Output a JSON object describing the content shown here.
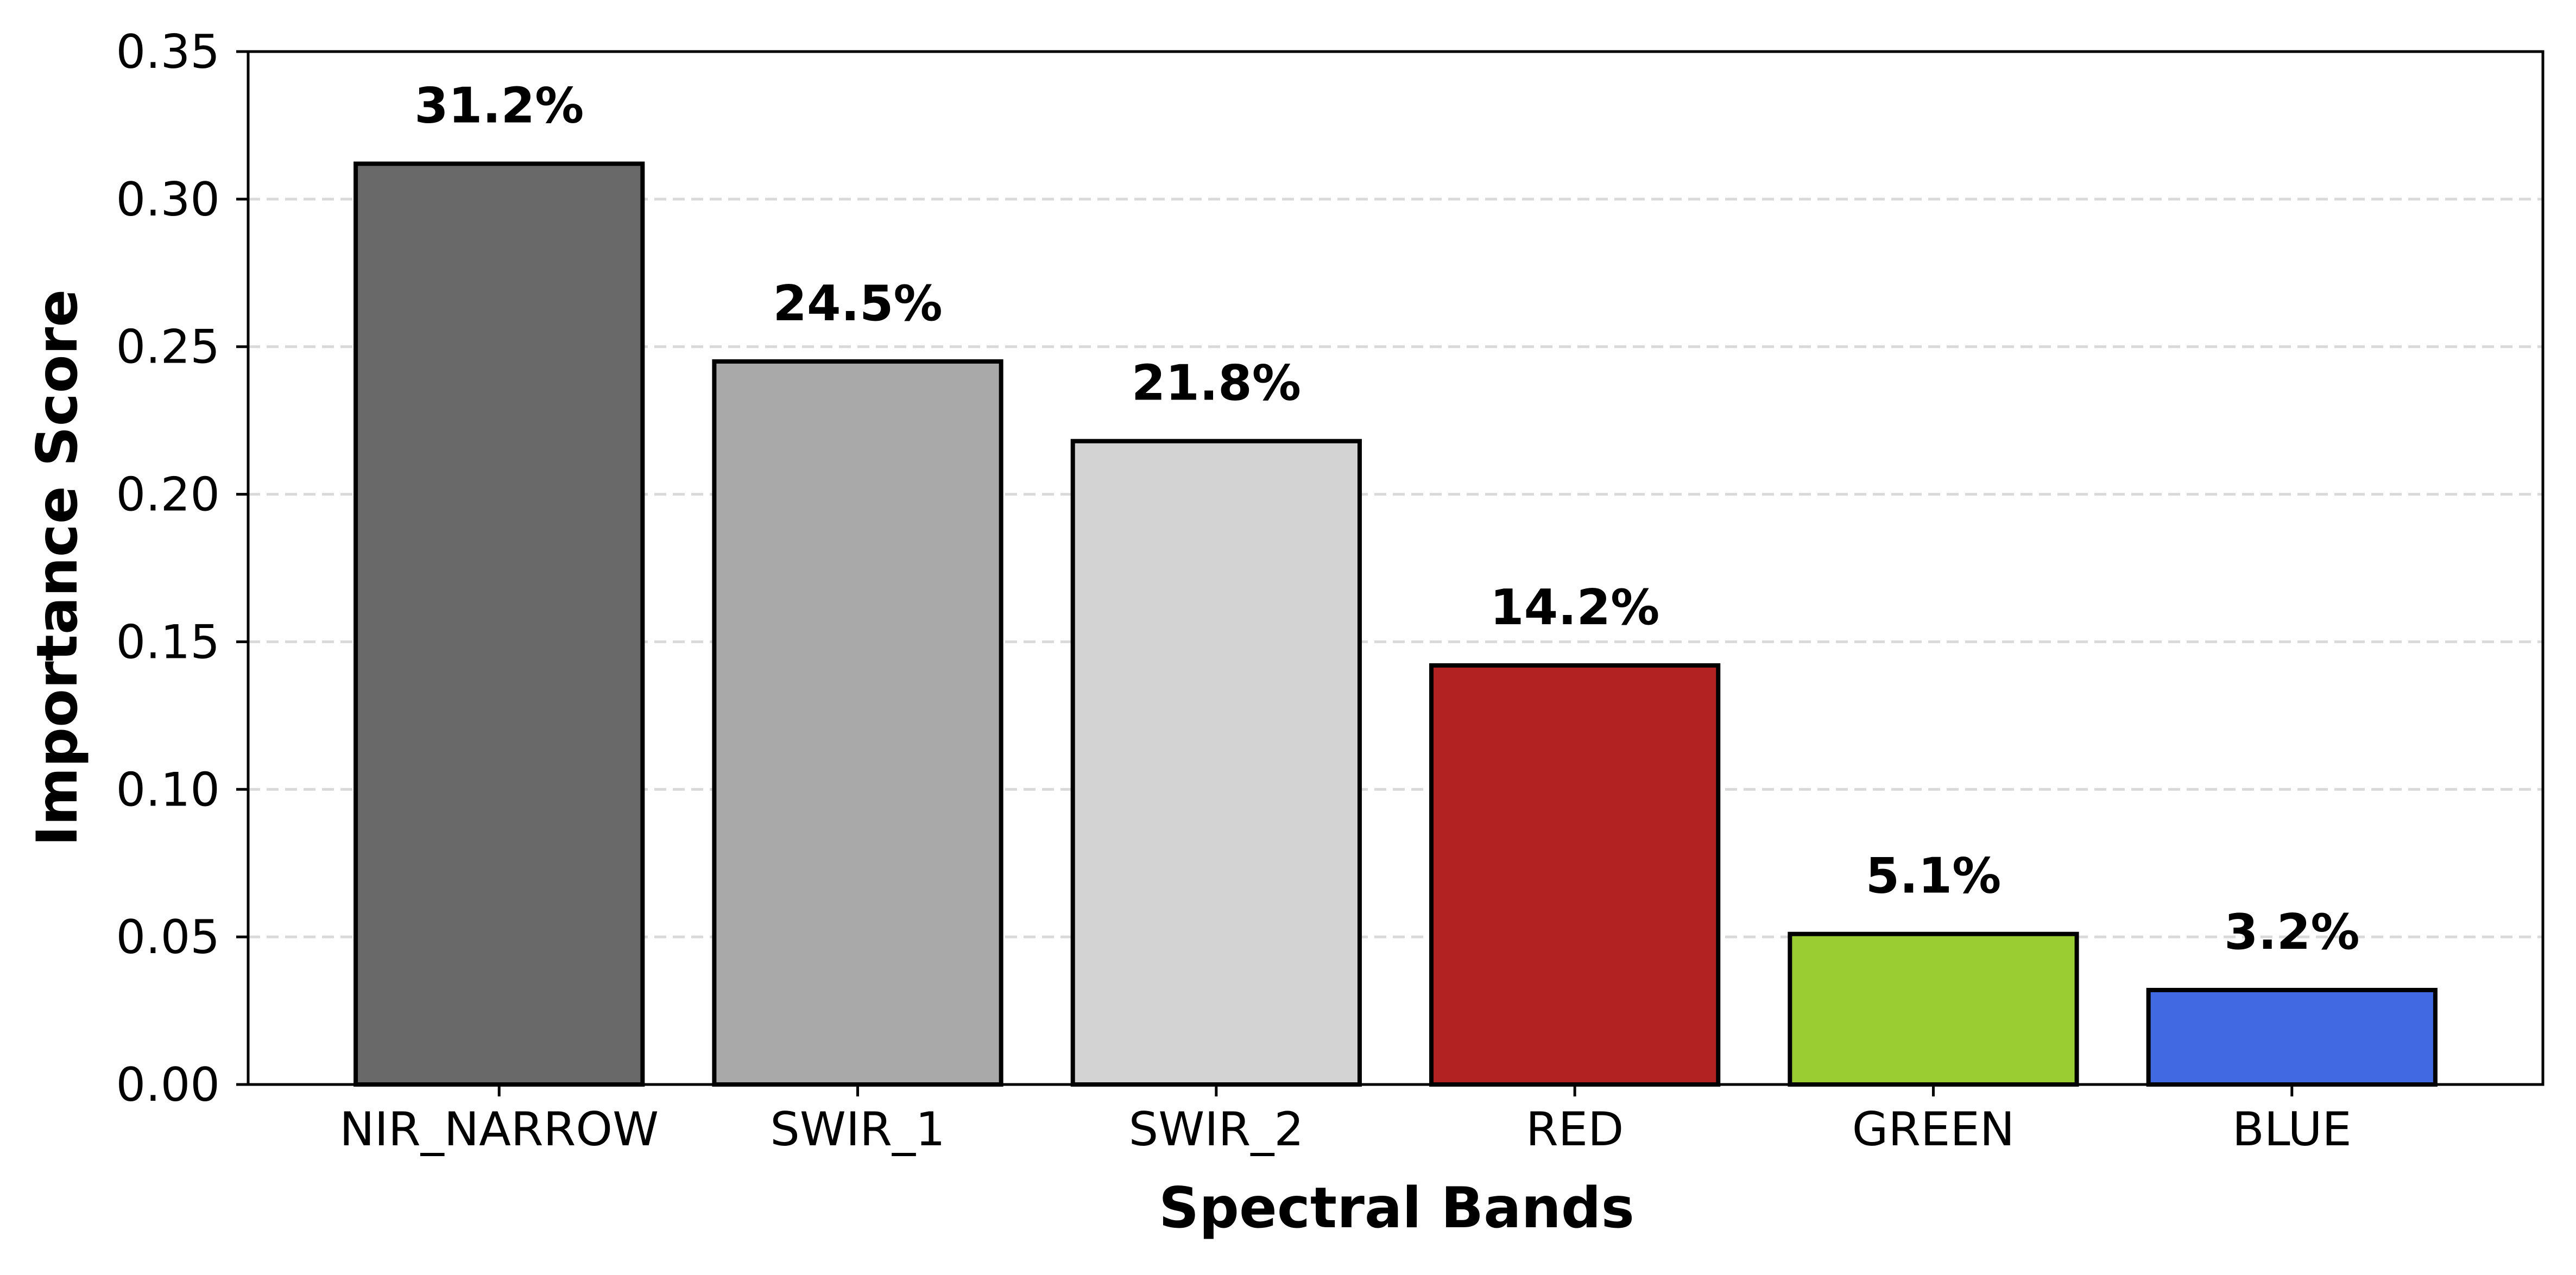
{
  "chart_data": {
    "type": "bar",
    "title": "",
    "xlabel": "Spectral Bands",
    "ylabel": "Importance Score",
    "categories": [
      "NIR_NARROW",
      "SWIR_1",
      "SWIR_2",
      "RED",
      "GREEN",
      "BLUE"
    ],
    "values": [
      0.312,
      0.245,
      0.218,
      0.142,
      0.051,
      0.032
    ],
    "data_labels": [
      "31.2%",
      "24.5%",
      "21.8%",
      "14.2%",
      "5.1%",
      "3.2%"
    ],
    "colors": [
      "#696969",
      "#a9a9a9",
      "#d3d3d3",
      "#b22222",
      "#9acd32",
      "#4169e1"
    ],
    "ylim": [
      0,
      0.35
    ],
    "yticks": [
      "0.00",
      "0.05",
      "0.10",
      "0.15",
      "0.20",
      "0.25",
      "0.30",
      "0.35"
    ],
    "grid": "y-dashed",
    "legend": "none"
  }
}
